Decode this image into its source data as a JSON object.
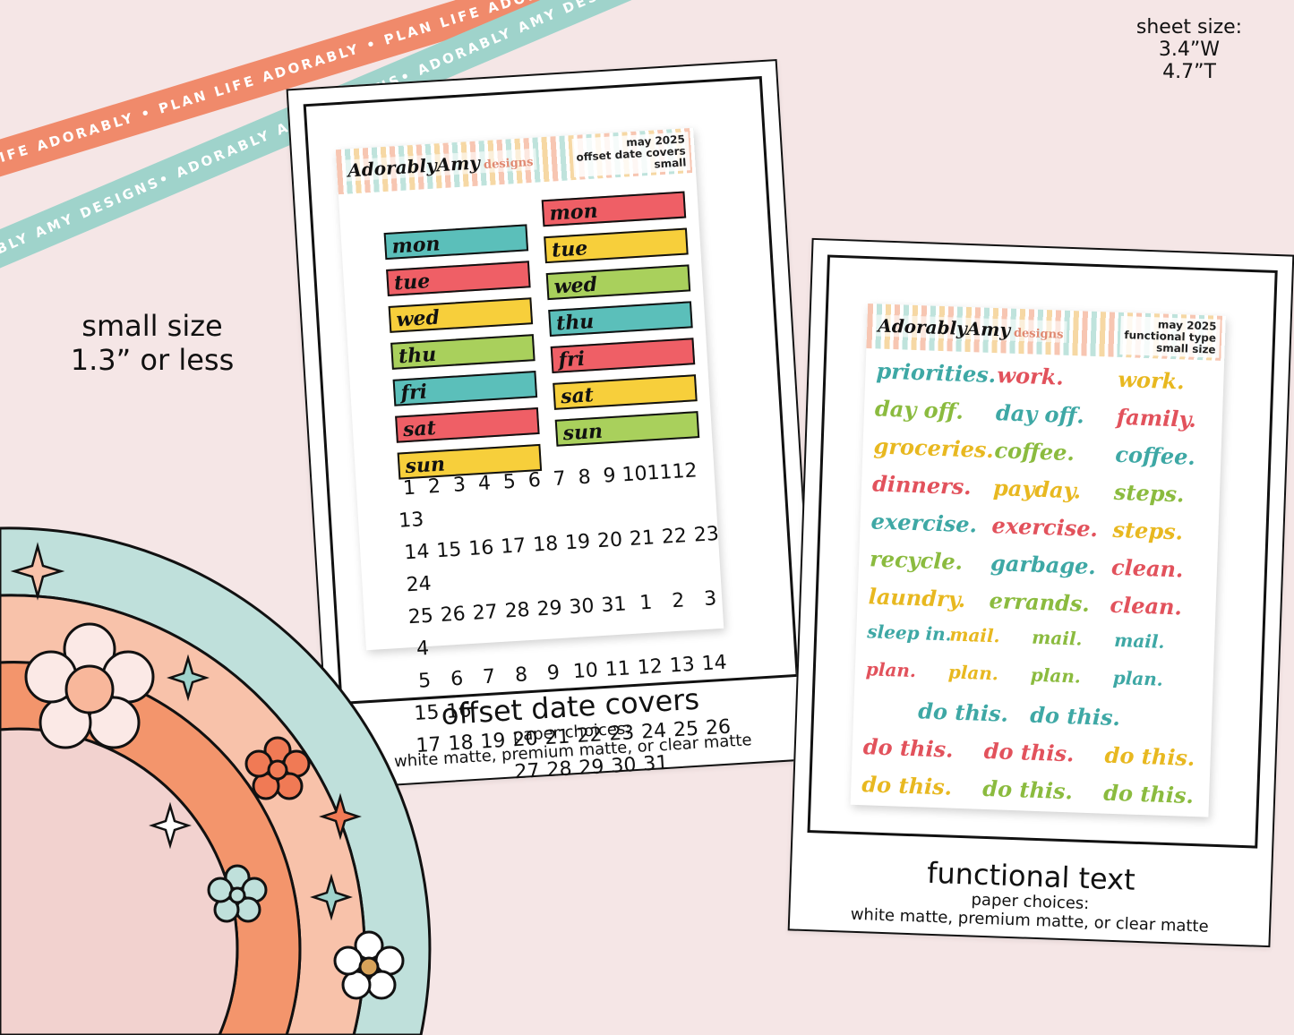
{
  "ribbons": {
    "top_text": "PLAN LIFE ADORABLY • PLAN LIFE ADORABLY • PLAN LIFE ADORABLY",
    "bottom_text": "ADORABLY AMY DESIGNS• ADORABLY AMY DESIGNS• ADORABLY AMY DESIGNS•"
  },
  "sheet_size": {
    "label": "sheet size:",
    "width": "3.4”W",
    "height": "4.7”T"
  },
  "size_note": {
    "line1": "small size",
    "line2": "1.3” or less"
  },
  "left_sheet": {
    "brand": "AdorablyAmy",
    "brand_sub": "designs",
    "meta_line1": "may 2025",
    "meta_line2": "offset date covers",
    "meta_line3": "small",
    "days_col1": [
      "mon",
      "tue",
      "wed",
      "thu",
      "fri",
      "sat",
      "sun"
    ],
    "days_col2": [
      "mon",
      "tue",
      "wed",
      "thu",
      "fri",
      "sat",
      "sun"
    ],
    "numbers": [
      "1",
      "2",
      "3",
      "4",
      "5",
      "6",
      "7",
      "8",
      "9",
      "10",
      "11",
      "12",
      "13",
      "14",
      "15",
      "16",
      "17",
      "18",
      "19",
      "20",
      "21",
      "22",
      "23",
      "24",
      "25",
      "26",
      "27",
      "28",
      "29",
      "30",
      "31",
      "1",
      "2",
      "3",
      "4",
      "5",
      "6",
      "7",
      "8",
      "9",
      "10",
      "11",
      "12",
      "13",
      "14",
      "15",
      "16",
      "17",
      "18",
      "19",
      "20",
      "21",
      "22",
      "23",
      "24",
      "25",
      "26",
      "27",
      "28",
      "29",
      "30",
      "31"
    ],
    "caption_title": "offset date covers",
    "caption_line1": "paper choices:",
    "caption_line2": "white matte, premium matte, or clear matte"
  },
  "right_sheet": {
    "brand": "AdorablyAmy",
    "brand_sub": "designs",
    "meta_line1": "may 2025",
    "meta_line2": "functional type",
    "meta_line3": "small size",
    "words": [
      "priorities.",
      "work.",
      "work.",
      "day off.",
      "day off.",
      "family.",
      "groceries.",
      "coffee.",
      "coffee.",
      "dinners.",
      "payday.",
      "steps.",
      "exercise.",
      "exercise.",
      "steps.",
      "recycle.",
      "garbage.",
      "clean.",
      "laundry.",
      "errands.",
      "clean.",
      "sleep in.",
      "mail.",
      "mail.",
      "mail.",
      "plan.",
      "plan.",
      "plan.",
      "plan.",
      "do this.",
      "do this.",
      "do this.",
      "do this.",
      "do this.",
      "do this.",
      "do this.",
      "do this."
    ],
    "caption_title": "functional text",
    "caption_line1": "paper choices:",
    "caption_line2": "white matte, premium matte, or clear matte"
  },
  "colors": {
    "teal": "#5bbfba",
    "coral": "#ef5f66",
    "yellow": "#f7cf3b",
    "green": "#a9d05c",
    "word_teal": "#3ea8a5",
    "word_coral": "#e2525c",
    "word_yellow": "#e8b820",
    "word_green": "#8bbb3f"
  }
}
